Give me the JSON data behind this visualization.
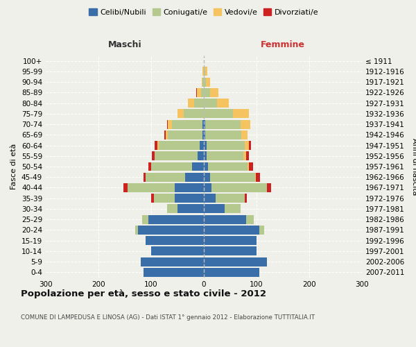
{
  "age_groups": [
    "0-4",
    "5-9",
    "10-14",
    "15-19",
    "20-24",
    "25-29",
    "30-34",
    "35-39",
    "40-44",
    "45-49",
    "50-54",
    "55-59",
    "60-64",
    "65-69",
    "70-74",
    "75-79",
    "80-84",
    "85-89",
    "90-94",
    "95-99",
    "100+"
  ],
  "birth_years": [
    "2007-2011",
    "2002-2006",
    "1997-2001",
    "1992-1996",
    "1987-1991",
    "1982-1986",
    "1977-1981",
    "1972-1976",
    "1967-1971",
    "1962-1966",
    "1957-1961",
    "1952-1956",
    "1947-1951",
    "1942-1946",
    "1937-1941",
    "1932-1936",
    "1927-1931",
    "1922-1926",
    "1917-1921",
    "1912-1916",
    "≤ 1911"
  ],
  "colors": {
    "celibe": "#3a6ea8",
    "coniugato": "#b5c98e",
    "vedovo": "#f5c35f",
    "divorziato": "#cc2222"
  },
  "male": {
    "celibe": [
      115,
      120,
      100,
      110,
      125,
      105,
      50,
      55,
      55,
      35,
      22,
      12,
      8,
      3,
      2,
      0,
      0,
      0,
      0,
      0,
      0
    ],
    "coniugato": [
      0,
      0,
      0,
      0,
      5,
      12,
      20,
      40,
      90,
      75,
      78,
      82,
      78,
      65,
      58,
      38,
      18,
      5,
      2,
      0,
      0
    ],
    "vedovo": [
      0,
      0,
      0,
      0,
      0,
      0,
      0,
      0,
      0,
      0,
      0,
      0,
      2,
      5,
      8,
      12,
      12,
      8,
      2,
      2,
      0
    ],
    "divorziato": [
      0,
      0,
      0,
      0,
      0,
      0,
      0,
      5,
      8,
      5,
      5,
      5,
      5,
      2,
      2,
      0,
      0,
      2,
      0,
      0,
      0
    ]
  },
  "female": {
    "nubile": [
      105,
      120,
      100,
      100,
      105,
      80,
      40,
      22,
      15,
      12,
      8,
      5,
      5,
      3,
      2,
      0,
      0,
      0,
      0,
      0,
      0
    ],
    "coniugata": [
      0,
      0,
      0,
      0,
      10,
      15,
      30,
      55,
      105,
      85,
      75,
      70,
      72,
      68,
      68,
      55,
      25,
      12,
      4,
      2,
      0
    ],
    "vedova": [
      0,
      0,
      0,
      0,
      0,
      0,
      0,
      0,
      0,
      2,
      2,
      5,
      8,
      12,
      18,
      30,
      22,
      15,
      8,
      5,
      0
    ],
    "divorziata": [
      0,
      0,
      0,
      0,
      0,
      0,
      0,
      5,
      8,
      8,
      8,
      5,
      5,
      0,
      0,
      0,
      0,
      0,
      0,
      0,
      0
    ]
  },
  "xlim": 300,
  "title": "Popolazione per età, sesso e stato civile - 2012",
  "subtitle": "COMUNE DI LAMPEDUSA E LINOSA (AG) - Dati ISTAT 1° gennaio 2012 - Elaborazione TUTTITALIA.IT",
  "ylabel_left": "Fasce di età",
  "ylabel_right": "Anni di nascita",
  "xlabel_maschi": "Maschi",
  "xlabel_femmine": "Femmine",
  "legend_labels": [
    "Celibi/Nubili",
    "Coniugati/e",
    "Vedovi/e",
    "Divorziati/e"
  ],
  "legend_colors": [
    "#3a6ea8",
    "#b5c98e",
    "#f5c35f",
    "#cc2222"
  ],
  "bg_color": "#f0f0eb",
  "bar_height": 0.85
}
